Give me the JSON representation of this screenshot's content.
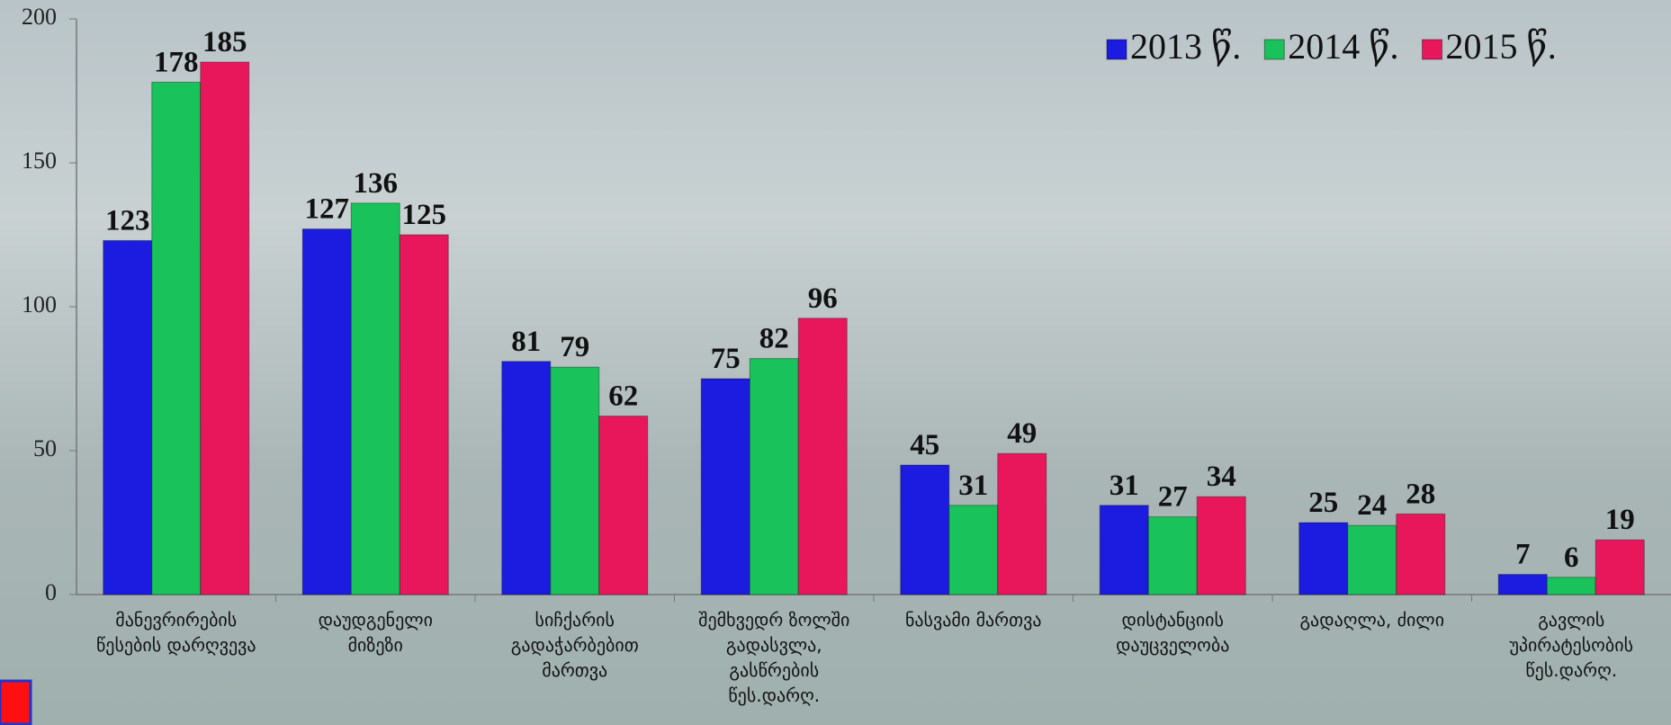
{
  "chart_data": {
    "type": "bar",
    "categories": [
      "მანევრირების წესების დარღვევა",
      "დაუდგენელი მიზეზი",
      "სიჩქარის გადაჭარბებით მართვა",
      "შემხვედრ ზოლში გადასვლა, გასწრების წეს.დარღ.",
      "ნასვამი მართვა",
      "დისტანციის დაუცველობა",
      "გადაღლა, ძილი",
      "გავლის უპირატესობის წეს.დარღ."
    ],
    "series": [
      {
        "name": "2013 წ.",
        "color": "#1c1ce0",
        "values": [
          123,
          127,
          81,
          75,
          45,
          31,
          25,
          7
        ]
      },
      {
        "name": "2014 წ.",
        "color": "#19c25a",
        "values": [
          178,
          136,
          79,
          82,
          31,
          27,
          24,
          6
        ]
      },
      {
        "name": "2015 წ.",
        "color": "#e8175c",
        "values": [
          185,
          125,
          62,
          96,
          49,
          34,
          28,
          19
        ]
      }
    ],
    "ylim": [
      0,
      200
    ],
    "yticks": [
      0,
      50,
      100,
      150,
      200
    ],
    "legend": "top-right"
  }
}
